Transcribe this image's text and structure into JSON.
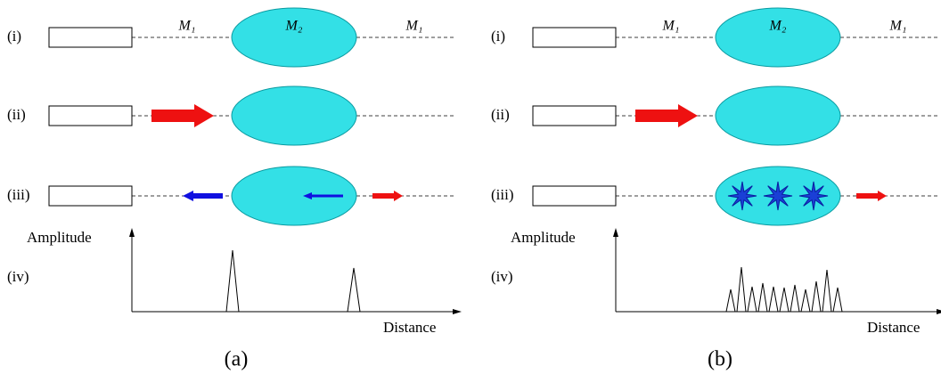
{
  "panels": [
    {
      "caption": "(a)",
      "rows": [
        "(i)",
        "(ii)",
        "(iii)",
        "(iv)"
      ],
      "media_labels": [
        "M₁",
        "M₂",
        "M₁"
      ],
      "y_axis": "Amplitude",
      "x_axis": "Distance"
    },
    {
      "caption": "(b)",
      "rows": [
        "(i)",
        "(ii)",
        "(iii)",
        "(iv)"
      ],
      "media_labels": [
        "M₁",
        "M₂",
        "M₁"
      ],
      "y_axis": "Amplitude",
      "x_axis": "Distance"
    }
  ]
}
